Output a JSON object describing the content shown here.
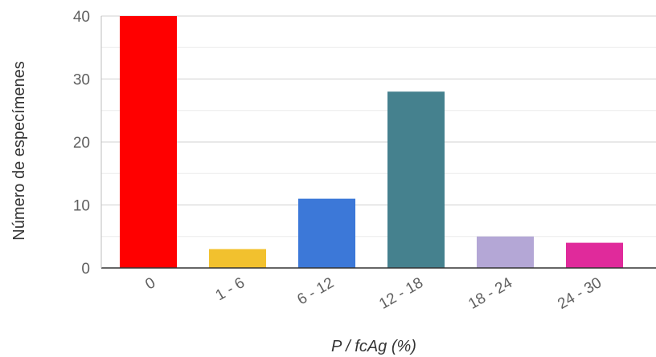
{
  "chart_data": {
    "type": "bar",
    "categories": [
      "0",
      "1 - 6",
      "6 - 12",
      "12 - 18",
      "18 - 24",
      "24 - 30"
    ],
    "values": [
      40,
      3,
      11,
      28,
      5,
      4
    ],
    "colors": [
      "#ff0000",
      "#f2c12e",
      "#3c78d8",
      "#45818e",
      "#b4a7d6",
      "#e02a9b"
    ],
    "xlabel": "P / fcAg (%)",
    "ylabel": "Número de especímenes",
    "ylim": [
      0,
      40
    ],
    "yticks": [
      0,
      10,
      20,
      30,
      40
    ],
    "grid": true,
    "legend": "none"
  }
}
